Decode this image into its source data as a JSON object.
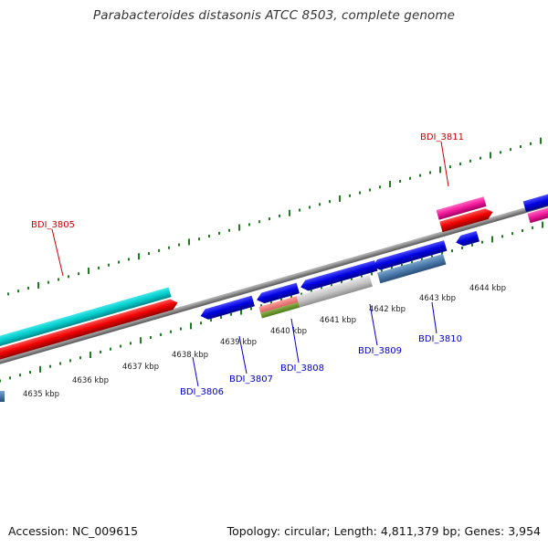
{
  "title": "Parabacteroides distasonis ATCC 8503, complete genome",
  "footer": {
    "accession": "Accession: NC_009615",
    "summary": "Topology: circular; Length: 4,811,379 bp; Genes: 3,954"
  },
  "colors": {
    "backbone": "#8c8c8c",
    "tick": "#1e7d1e",
    "forward_label": "#cc0000",
    "reverse_label": "#0000cc"
  },
  "kbp_labels": [
    "4635 kbp",
    "4636 kbp",
    "4637 kbp",
    "4638 kbp",
    "4639 kbp",
    "4640 kbp",
    "4641 kbp",
    "4642 kbp",
    "4643 kbp",
    "4644 kbp"
  ],
  "gene_labels": [
    {
      "name": "BDI_3805",
      "strand": "forward"
    },
    {
      "name": "BDI_3811",
      "strand": "forward"
    },
    {
      "name": "BDI_3806",
      "strand": "reverse"
    },
    {
      "name": "BDI_3807",
      "strand": "reverse"
    },
    {
      "name": "BDI_3808",
      "strand": "reverse"
    },
    {
      "name": "BDI_3809",
      "strand": "reverse"
    },
    {
      "name": "BDI_3810",
      "strand": "reverse"
    }
  ]
}
